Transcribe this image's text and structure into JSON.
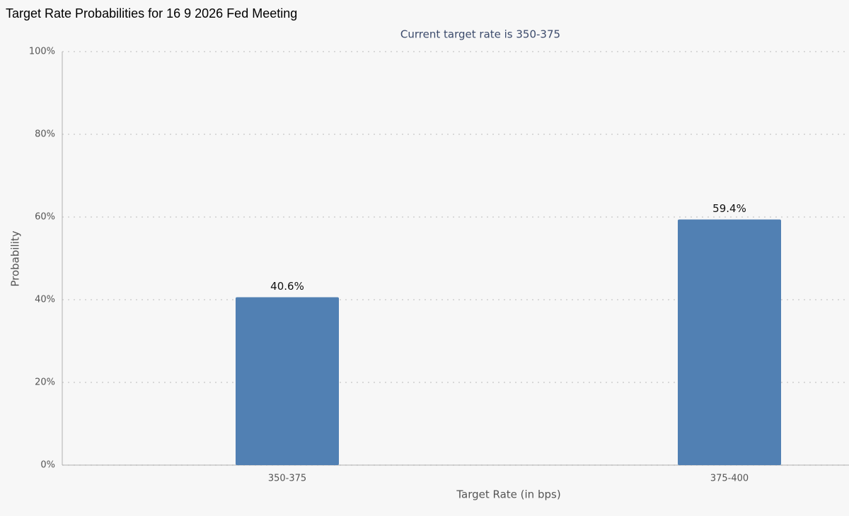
{
  "chart_data": {
    "type": "bar",
    "title": "Target Rate Probabilities for 16 9 2026 Fed Meeting",
    "subtitle": "Current target rate is 350-375",
    "x_label": "Target Rate (in bps)",
    "y_label": "Probability",
    "categories": [
      "350-375",
      "375-400"
    ],
    "values": [
      40.6,
      59.4
    ],
    "value_labels": [
      "40.6%",
      "59.4%"
    ],
    "color": "#5180b3",
    "ylim": [
      0,
      100
    ],
    "yticks": [
      {
        "value": 0,
        "label": "0%"
      },
      {
        "value": 20,
        "label": "20%"
      },
      {
        "value": 40,
        "label": "40%"
      },
      {
        "value": 60,
        "label": "60%"
      },
      {
        "value": 80,
        "label": "80%"
      },
      {
        "value": 100,
        "label": "100%"
      }
    ],
    "grid": true
  }
}
